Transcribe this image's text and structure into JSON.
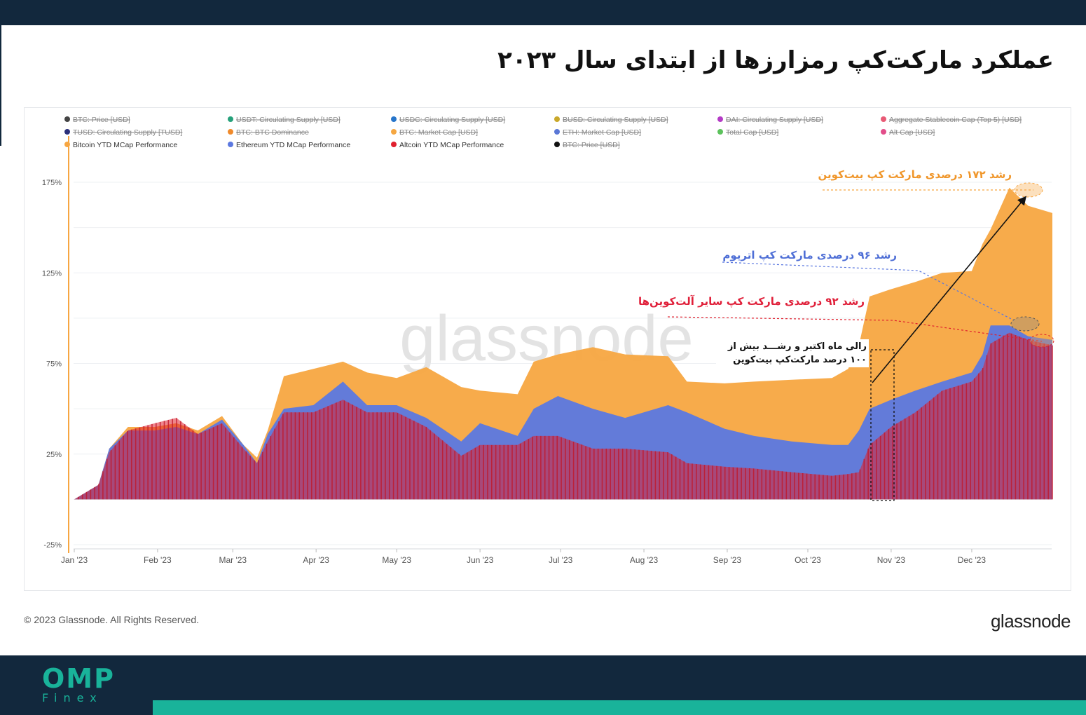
{
  "page": {
    "title": "عملکرد مارکت‌کپ رمزارزها از ابتدای سال ۲۰۲۳",
    "copyright": "© 2023 Glassnode. All Rights Reserved.",
    "brand": "glassnode",
    "footer_logo_main": "OMP",
    "footer_logo_sub": "Finex",
    "colors": {
      "header_bg": "#12283d",
      "accent": "#19b39a"
    }
  },
  "chart_data": {
    "type": "area",
    "watermark": "glassnode",
    "y_ticks": [
      "175%",
      "125%",
      "75%",
      "25%",
      "-25%"
    ],
    "y_tick_values": [
      175,
      125,
      75,
      25,
      -25
    ],
    "x_ticks": [
      "Jan '23",
      "Feb '23",
      "Mar '23",
      "Apr '23",
      "May '23",
      "Jun '23",
      "Jul '23",
      "Aug '23",
      "Sep '23",
      "Oct '23",
      "Nov '23",
      "Dec '23"
    ],
    "ylim": [
      -25,
      175
    ],
    "grid": true,
    "legend": [
      {
        "label": "BTC: Price [USD]",
        "color": "#444444",
        "hidden": true
      },
      {
        "label": "USDT: Circulating Supply [USD]",
        "color": "#26a17b",
        "hidden": true
      },
      {
        "label": "USDC: Circulating Supply [USD]",
        "color": "#2775ca",
        "hidden": true
      },
      {
        "label": "BUSD: Circulating Supply [USD]",
        "color": "#c9a82a",
        "hidden": true
      },
      {
        "label": "DAI: Circulating Supply [USD]",
        "color": "#b43bc6",
        "hidden": true
      },
      {
        "label": "Aggregate Stablecoin Cap (Top 5) [USD]",
        "color": "#e85a75",
        "hidden": true
      },
      {
        "label": "TUSD: Circulating Supply [TUSD]",
        "color": "#2b2f7a",
        "hidden": true
      },
      {
        "label": "BTC: BTC Dominance",
        "color": "#f08a2b",
        "hidden": true
      },
      {
        "label": "BTC: Market Cap [USD]",
        "color": "#f5a742",
        "hidden": true
      },
      {
        "label": "ETH: Market Cap [USD]",
        "color": "#5a77d6",
        "hidden": true
      },
      {
        "label": "Total Cap [USD]",
        "color": "#5cc25c",
        "hidden": true
      },
      {
        "label": "Alt Cap [USD]",
        "color": "#e24d8a",
        "hidden": true
      },
      {
        "label": "Bitcoin YTD MCap Performance",
        "color": "#f7a641",
        "hidden": false
      },
      {
        "label": "Ethereum YTD MCap Performance",
        "color": "#5b78e0",
        "hidden": false
      },
      {
        "label": "Altcoin YTD MCap Performance",
        "color": "#e0202e",
        "hidden": false
      },
      {
        "label": "BTC: Price [USD]",
        "color": "#111111",
        "hidden": true
      }
    ],
    "x_dates": [
      "2023-01-01",
      "2023-01-10",
      "2023-01-14",
      "2023-01-21",
      "2023-01-31",
      "2023-02-08",
      "2023-02-16",
      "2023-02-25",
      "2023-03-05",
      "2023-03-10",
      "2023-03-14",
      "2023-03-20",
      "2023-03-31",
      "2023-04-11",
      "2023-04-20",
      "2023-05-01",
      "2023-05-12",
      "2023-05-25",
      "2023-06-01",
      "2023-06-15",
      "2023-06-21",
      "2023-06-30",
      "2023-07-13",
      "2023-07-25",
      "2023-08-10",
      "2023-08-17",
      "2023-08-31",
      "2023-09-11",
      "2023-09-25",
      "2023-10-10",
      "2023-10-16",
      "2023-10-20",
      "2023-10-24",
      "2023-11-01",
      "2023-11-10",
      "2023-11-20",
      "2023-12-01",
      "2023-12-05",
      "2023-12-08",
      "2023-12-15",
      "2023-12-22",
      "2023-12-31"
    ],
    "series": [
      {
        "name": "Bitcoin YTD MCap Performance",
        "color": "#f7a641",
        "values": [
          0,
          8,
          28,
          40,
          40,
          42,
          38,
          46,
          30,
          23,
          38,
          68,
          72,
          76,
          70,
          67,
          73,
          62,
          60,
          58,
          76,
          80,
          84,
          80,
          79,
          65,
          64,
          65,
          66,
          67,
          72,
          85,
          112,
          116,
          120,
          125,
          126,
          141,
          149,
          172,
          162,
          158
        ]
      },
      {
        "name": "Ethereum YTD MCap Performance",
        "color": "#5b78e0",
        "values": [
          0,
          8,
          28,
          38,
          38,
          40,
          36,
          44,
          30,
          20,
          36,
          50,
          52,
          65,
          52,
          52,
          45,
          32,
          42,
          35,
          50,
          57,
          50,
          45,
          52,
          48,
          39,
          35,
          32,
          30,
          30,
          38,
          50,
          55,
          60,
          65,
          70,
          80,
          96,
          96,
          90,
          88
        ]
      },
      {
        "name": "Altcoin YTD MCap Performance",
        "color": "#e0202e",
        "values": [
          0,
          8,
          26,
          38,
          42,
          45,
          36,
          42,
          28,
          20,
          32,
          48,
          48,
          55,
          48,
          48,
          40,
          24,
          30,
          30,
          35,
          35,
          28,
          28,
          26,
          20,
          18,
          17,
          15,
          13,
          14,
          15,
          30,
          40,
          48,
          60,
          65,
          72,
          86,
          92,
          88,
          85
        ]
      }
    ]
  }
}
